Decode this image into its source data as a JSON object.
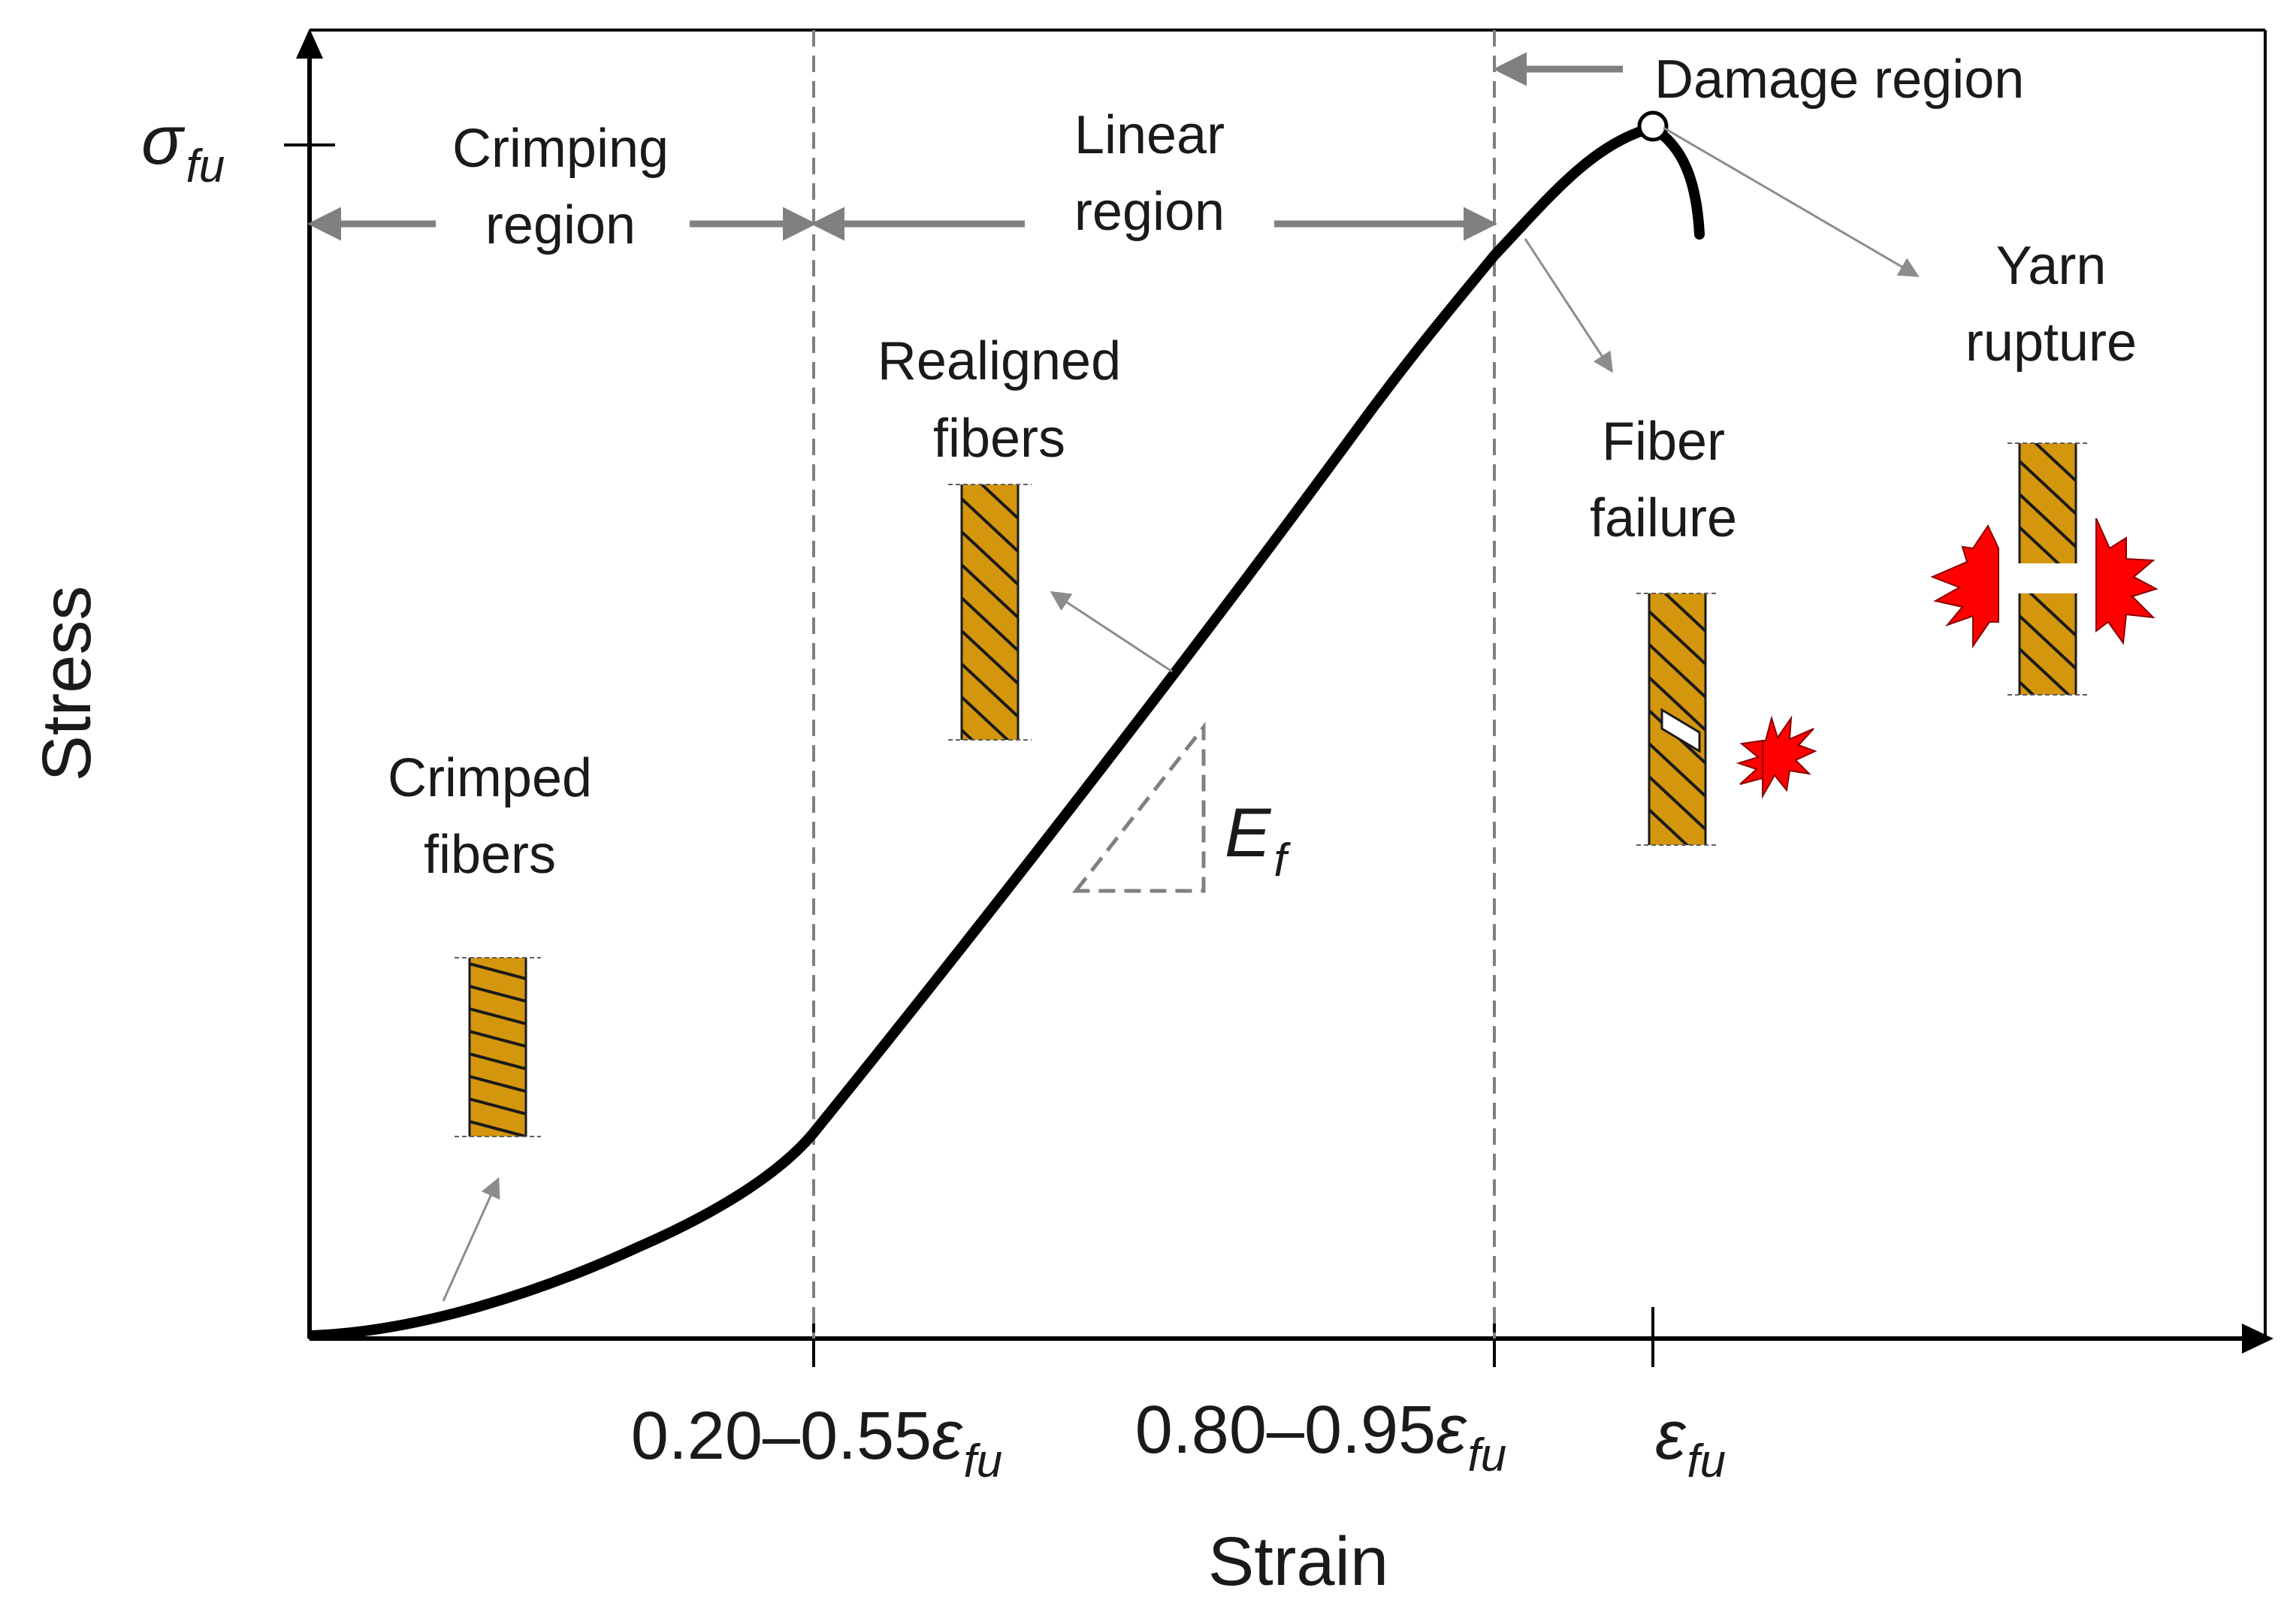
{
  "figure": {
    "axes": {
      "x_title": "Strain",
      "y_title": "Stress"
    },
    "y_ticks": [
      {
        "symbol": "σ",
        "subscript": "fu"
      }
    ],
    "x_ticks": [
      {
        "prefix": "0.20–0.55",
        "symbol": "ε",
        "subscript": "fu"
      },
      {
        "prefix": "0.80–0.95",
        "symbol": "ε",
        "subscript": "fu"
      },
      {
        "prefix": "",
        "symbol": "ε",
        "subscript": "fu"
      }
    ],
    "regions": {
      "crimping": [
        "Crimping",
        "region"
      ],
      "linear": [
        "Linear",
        "region"
      ],
      "damage": "Damage region"
    },
    "stages": {
      "crimped": [
        "Crimped",
        "fibers"
      ],
      "realigned": [
        "Realigned",
        "fibers"
      ],
      "fiber_failure": [
        "Fiber",
        "failure"
      ],
      "yarn_rupture": [
        "Yarn",
        "rupture"
      ]
    },
    "slope": {
      "symbol": "E",
      "subscript": "f"
    }
  },
  "colors": {
    "curve": "#000000",
    "guides": "#808080",
    "yarn": "#d4960c",
    "burst": "#ff0000"
  }
}
